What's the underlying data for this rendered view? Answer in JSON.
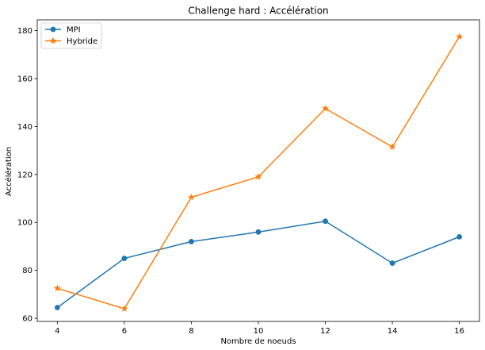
{
  "chart_data": {
    "type": "line",
    "title": "Challenge hard : Accélération",
    "xlabel": "Nombre de noeuds",
    "ylabel": "Accélération",
    "x": [
      4,
      6,
      8,
      10,
      12,
      14,
      16
    ],
    "xticks": [
      "4",
      "6",
      "8",
      "10",
      "12",
      "14",
      "16"
    ],
    "yticks": [
      "60",
      "80",
      "100",
      "120",
      "140",
      "160",
      "180"
    ],
    "xlim": [
      3.4,
      16.6
    ],
    "ylim": [
      58.7,
      184.5
    ],
    "grid": false,
    "legend_position": "top-left",
    "series": [
      {
        "name": "MPI",
        "color": "#1f77b4",
        "marker": "circle",
        "values": [
          64.5,
          85.0,
          92.0,
          96.0,
          100.5,
          83.0,
          94.0
        ]
      },
      {
        "name": "Hybride",
        "color": "#ff7f0e",
        "marker": "star",
        "values": [
          72.5,
          64.0,
          110.5,
          119.0,
          147.5,
          131.5,
          177.5
        ]
      }
    ]
  }
}
